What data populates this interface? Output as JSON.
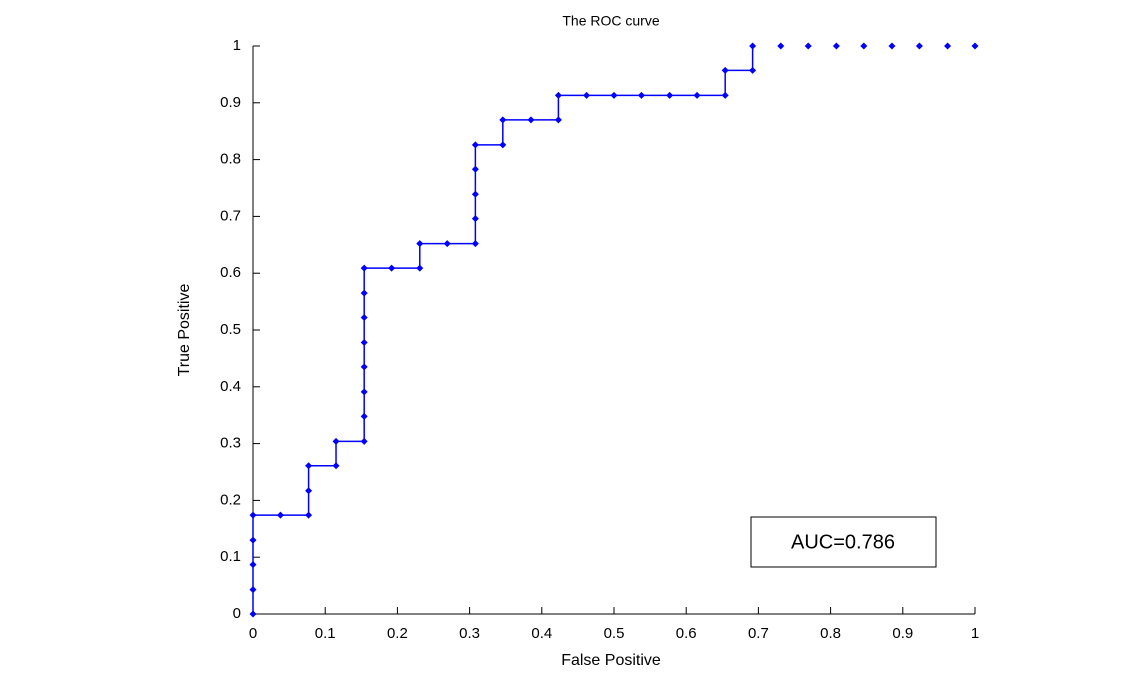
{
  "chart_data": {
    "type": "line",
    "title": "The ROC curve",
    "x_label": "False Positive",
    "y_label": "True Positive",
    "annotation": "AUC=0.786",
    "xlim": [
      0,
      1
    ],
    "ylim": [
      0,
      1
    ],
    "xticks": [
      0,
      0.1,
      0.2,
      0.3,
      0.4,
      0.5,
      0.6,
      0.7,
      0.8,
      0.9,
      1
    ],
    "yticks": [
      0,
      0.1,
      0.2,
      0.3,
      0.4,
      0.5,
      0.6,
      0.7,
      0.8,
      0.9,
      1
    ],
    "grid": false,
    "series": [
      {
        "color": "#0000ff",
        "line": true,
        "x": [
          0,
          0,
          0,
          0,
          0,
          0.038,
          0.077,
          0.077,
          0.077,
          0.115,
          0.115,
          0.154,
          0.154,
          0.154,
          0.154,
          0.154,
          0.154,
          0.154,
          0.154,
          0.192,
          0.231,
          0.231,
          0.269,
          0.308,
          0.308,
          0.308,
          0.308,
          0.308,
          0.346,
          0.346,
          0.385,
          0.423,
          0.423,
          0.462,
          0.5,
          0.538,
          0.577,
          0.615,
          0.654,
          0.654,
          0.692,
          0.692
        ],
        "values": [
          0,
          0.043,
          0.087,
          0.13,
          0.174,
          0.174,
          0.174,
          0.217,
          0.261,
          0.261,
          0.304,
          0.304,
          0.348,
          0.391,
          0.435,
          0.478,
          0.522,
          0.565,
          0.609,
          0.609,
          0.609,
          0.652,
          0.652,
          0.652,
          0.696,
          0.739,
          0.783,
          0.826,
          0.826,
          0.87,
          0.87,
          0.87,
          0.913,
          0.913,
          0.913,
          0.913,
          0.913,
          0.913,
          0.913,
          0.957,
          0.957,
          1
        ]
      },
      {
        "color": "#0000ff",
        "line": false,
        "x": [
          0.731,
          0.769,
          0.808,
          0.846,
          0.885,
          0.923,
          0.962,
          1
        ],
        "values": [
          1,
          1,
          1,
          1,
          1,
          1,
          1,
          1
        ]
      }
    ]
  }
}
